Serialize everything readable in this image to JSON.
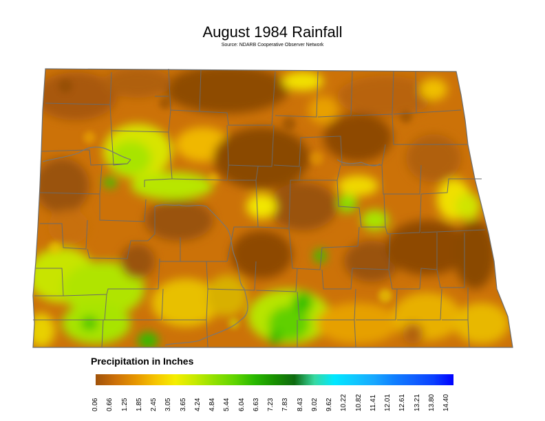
{
  "title": "August 1984 Rainfall",
  "subtitle": "Source: NDARB Cooperative Observer Network",
  "legend": {
    "title": "Precipitation in Inches",
    "ticks": [
      "0.06",
      "0.66",
      "1.25",
      "1.85",
      "2.45",
      "3.05",
      "3.65",
      "4.24",
      "4.84",
      "5.44",
      "6.04",
      "6.63",
      "7.23",
      "7.83",
      "8.43",
      "9.02",
      "9.62",
      "10.22",
      "10.82",
      "11.41",
      "12.01",
      "12.61",
      "13.21",
      "13.80",
      "14.40"
    ],
    "colors": [
      "#a0520a",
      "#cc7008",
      "#e69500",
      "#f6c400",
      "#f5ee00",
      "#c6ea00",
      "#8fe000",
      "#5fd400",
      "#28b800",
      "#189000",
      "#0e6a10",
      "#38d8a0",
      "#00e8ff",
      "#10c8ff",
      "#18a8ff",
      "#1080ff",
      "#1060ff",
      "#0a40ff",
      "#0000ff"
    ]
  },
  "colors": {
    "dry_dark": "#8a4a05",
    "dry": "#c86e08",
    "medium": "#e89a00",
    "yellow": "#f2ea00",
    "green_light": "#a8e600",
    "green": "#33c000",
    "border": "#6a6a6a"
  }
}
